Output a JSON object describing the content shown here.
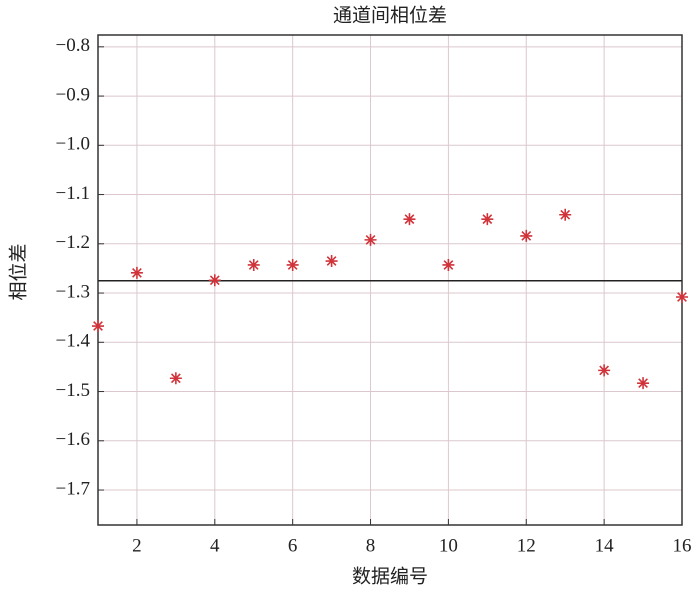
{
  "chart_data": {
    "type": "scatter",
    "title": "通道间相位差",
    "x_label": "数据编号",
    "y_label": "相位差",
    "x": [
      1,
      2,
      3,
      4,
      5,
      6,
      7,
      8,
      9,
      10,
      11,
      12,
      13,
      14,
      15,
      16
    ],
    "series": [
      {
        "name": "相位差",
        "color": "#d0343a",
        "values": [
          -1.367,
          -1.259,
          -1.473,
          -1.274,
          -1.243,
          -1.243,
          -1.235,
          -1.192,
          -1.15,
          -1.243,
          -1.15,
          -1.184,
          -1.141,
          -1.457,
          -1.483,
          -1.308
        ]
      }
    ],
    "reference_line": -1.275,
    "xlim": [
      1,
      16
    ],
    "ylim": [
      -1.771,
      -0.776
    ],
    "xticks": [
      2,
      4,
      6,
      8,
      10,
      12,
      14,
      16
    ],
    "yticks": [
      {
        "value": -0.8,
        "label": "−0.8"
      },
      {
        "value": -0.9,
        "label": "−0.9"
      },
      {
        "value": -1.0,
        "label": "−1.0"
      },
      {
        "value": -1.1,
        "label": "−1.1"
      },
      {
        "value": -1.2,
        "label": "−1.2"
      },
      {
        "value": -1.3,
        "label": "−1.3"
      },
      {
        "value": -1.4,
        "label": "−1.4"
      },
      {
        "value": -1.5,
        "label": "−1.5"
      },
      {
        "value": -1.6,
        "label": "−1.6"
      },
      {
        "value": -1.7,
        "label": "−1.7"
      }
    ],
    "grid": true
  }
}
